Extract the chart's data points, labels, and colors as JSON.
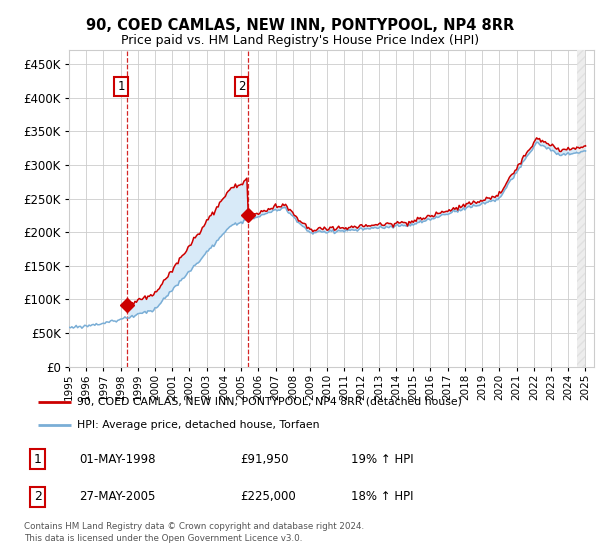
{
  "title": "90, COED CAMLAS, NEW INN, PONTYPOOL, NP4 8RR",
  "subtitle": "Price paid vs. HM Land Registry's House Price Index (HPI)",
  "legend_line1": "90, COED CAMLAS, NEW INN, PONTYPOOL, NP4 8RR (detached house)",
  "legend_line2": "HPI: Average price, detached house, Torfaen",
  "footnote1": "Contains HM Land Registry data © Crown copyright and database right 2024.",
  "footnote2": "This data is licensed under the Open Government Licence v3.0.",
  "purchase1_date": "01-MAY-1998",
  "purchase1_price": 91950,
  "purchase1_label": "19% ↑ HPI",
  "purchase2_date": "27-MAY-2005",
  "purchase2_price": 225000,
  "purchase2_label": "18% ↑ HPI",
  "purchase1_year": 1998.37,
  "purchase2_year": 2005.37,
  "hpi_color": "#7aaed6",
  "price_color": "#cc0000",
  "shade_color": "#d8eaf8",
  "dashed_color": "#cc0000",
  "grid_color": "#cccccc",
  "background_color": "#ffffff",
  "ylim_min": 0,
  "ylim_max": 470000,
  "xlim_min": 1995,
  "xlim_max": 2025.5
}
